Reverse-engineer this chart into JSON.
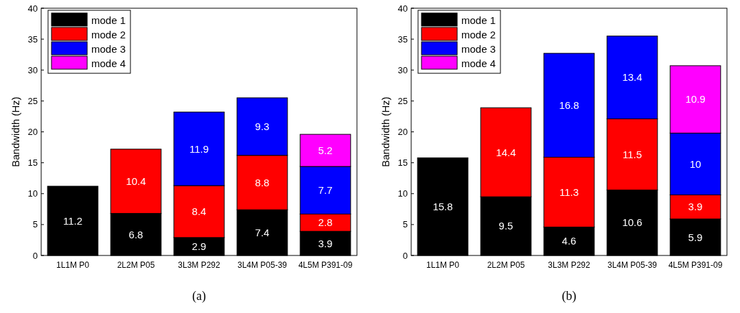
{
  "chart_data": [
    {
      "type": "bar",
      "stacked": true,
      "ylabel": "Bandwidth (Hz)",
      "categories": [
        "1L1M P0",
        "2L2M P05",
        "3L3M P292",
        "3L4M P05-39",
        "4L5M P391-09"
      ],
      "ylim": [
        0,
        40
      ],
      "yticks": [
        0,
        5,
        10,
        15,
        20,
        25,
        30,
        35,
        40
      ],
      "legend": "top left",
      "grid": false,
      "data_labels": true,
      "annotations": [
        "(a)"
      ],
      "series": [
        {
          "name": "mode 1",
          "color": "#000000",
          "values": [
            11.2,
            6.8,
            2.9,
            7.4,
            3.9
          ]
        },
        {
          "name": "mode 2",
          "color": "#ff0000",
          "values": [
            null,
            10.4,
            8.4,
            8.8,
            2.8
          ]
        },
        {
          "name": "mode 3",
          "color": "#0000ff",
          "values": [
            null,
            null,
            11.9,
            9.3,
            7.7
          ]
        },
        {
          "name": "mode 4",
          "color": "#ff00ff",
          "values": [
            null,
            null,
            null,
            null,
            5.2
          ]
        }
      ]
    },
    {
      "type": "bar",
      "stacked": true,
      "ylabel": "Bandwidth (Hz)",
      "categories": [
        "1L1M P0",
        "2L2M P05",
        "3L3M P292",
        "3L4M P05-39",
        "4L5M P391-09"
      ],
      "ylim": [
        0,
        40
      ],
      "yticks": [
        0,
        5,
        10,
        15,
        20,
        25,
        30,
        35,
        40
      ],
      "legend": "top left",
      "grid": false,
      "data_labels": true,
      "annotations": [
        "(b)"
      ],
      "series": [
        {
          "name": "mode 1",
          "color": "#000000",
          "values": [
            15.8,
            9.5,
            4.6,
            10.6,
            5.9
          ]
        },
        {
          "name": "mode 2",
          "color": "#ff0000",
          "values": [
            null,
            14.4,
            11.3,
            11.5,
            3.9
          ]
        },
        {
          "name": "mode 3",
          "color": "#0000ff",
          "values": [
            null,
            null,
            16.8,
            13.4,
            10
          ]
        },
        {
          "name": "mode 4",
          "color": "#ff00ff",
          "values": [
            null,
            null,
            null,
            null,
            10.9
          ]
        }
      ]
    }
  ]
}
